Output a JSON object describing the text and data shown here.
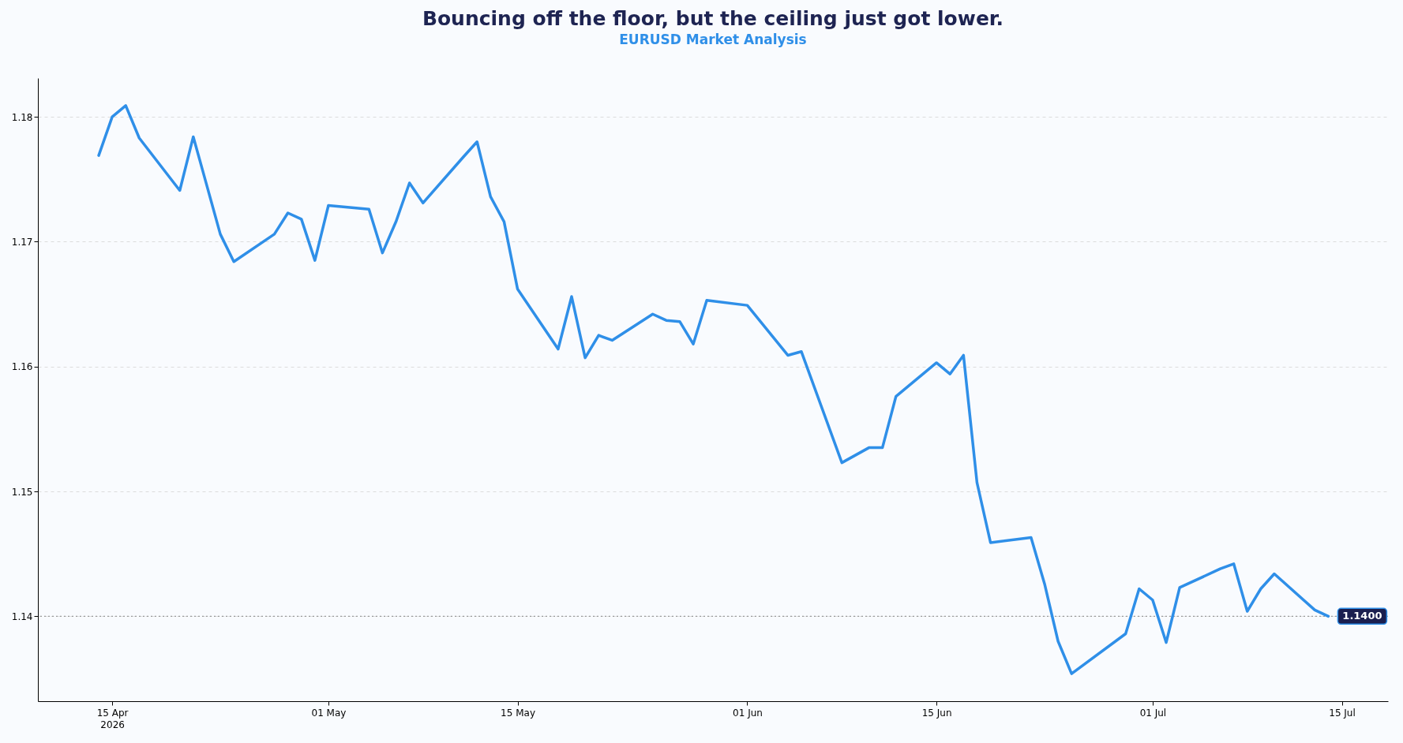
{
  "chart_data": {
    "type": "line",
    "title": "Bouncing off the floor, but the ceiling just got lower.",
    "subtitle": "EURUSD Market Analysis",
    "x": [
      "2026-04-14",
      "2026-04-15",
      "2026-04-16",
      "2026-04-17",
      "2026-04-20",
      "2026-04-21",
      "2026-04-22",
      "2026-04-23",
      "2026-04-24",
      "2026-04-27",
      "2026-04-28",
      "2026-04-29",
      "2026-04-30",
      "2026-05-01",
      "2026-05-04",
      "2026-05-05",
      "2026-05-06",
      "2026-05-07",
      "2026-05-08",
      "2026-05-11",
      "2026-05-12",
      "2026-05-13",
      "2026-05-14",
      "2026-05-15",
      "2026-05-18",
      "2026-05-19",
      "2026-05-20",
      "2026-05-21",
      "2026-05-22",
      "2026-05-25",
      "2026-05-26",
      "2026-05-27",
      "2026-05-28",
      "2026-05-29",
      "2026-06-01",
      "2026-06-04",
      "2026-06-05",
      "2026-06-08",
      "2026-06-09",
      "2026-06-10",
      "2026-06-11",
      "2026-06-12",
      "2026-06-15",
      "2026-06-16",
      "2026-06-17",
      "2026-06-18",
      "2026-06-19",
      "2026-06-22",
      "2026-06-23",
      "2026-06-24",
      "2026-06-25",
      "2026-06-29",
      "2026-06-30",
      "2026-07-01",
      "2026-07-02",
      "2026-07-03",
      "2026-07-06",
      "2026-07-07",
      "2026-07-08",
      "2026-07-09",
      "2026-07-10",
      "2026-07-13",
      "2026-07-14"
    ],
    "series": [
      {
        "color": "#2f8fe8",
        "values": [
          1.1769,
          1.18,
          1.1809,
          1.1783,
          1.1741,
          1.1784,
          1.1745,
          1.1706,
          1.1684,
          1.1706,
          1.1723,
          1.1718,
          1.1685,
          1.1729,
          1.1726,
          1.1691,
          1.1716,
          1.1747,
          1.1731,
          1.1768,
          1.178,
          1.1736,
          1.1716,
          1.1662,
          1.1614,
          1.1656,
          1.1607,
          1.1625,
          1.1621,
          1.1642,
          1.1637,
          1.1636,
          1.1618,
          1.1653,
          1.1649,
          1.1609,
          1.1612,
          1.1523,
          1.1529,
          1.1535,
          1.1535,
          1.1576,
          1.1603,
          1.1594,
          1.1609,
          1.1507,
          1.1459,
          1.1463,
          1.1426,
          1.138,
          1.1354,
          1.1386,
          1.1422,
          1.1413,
          1.1379,
          1.1423,
          1.1438,
          1.1442,
          1.1404,
          1.1422,
          1.1434,
          1.1405,
          1.14
        ]
      }
    ],
    "xlim": [
      "2026-04-09T12:00",
      "2026-07-18T10:00"
    ],
    "xticks": [
      {
        "value": "2026-04-15",
        "label": "15 Apr\n2026"
      },
      {
        "value": "2026-05-01",
        "label": "01 May"
      },
      {
        "value": "2026-05-15",
        "label": "15 May"
      },
      {
        "value": "2026-06-01",
        "label": "01 Jun"
      },
      {
        "value": "2026-06-15",
        "label": "15 Jun"
      },
      {
        "value": "2026-07-01",
        "label": "01 Jul"
      },
      {
        "value": "2026-07-15",
        "label": "15 Jul"
      }
    ],
    "ylim": [
      1.1332,
      1.1831
    ],
    "yticks": [
      1.14,
      1.15,
      1.16,
      1.17,
      1.18
    ],
    "grid": "y",
    "ref_lines": [
      {
        "axis": "y",
        "value": 1.14,
        "color": "#9a9a9a",
        "line_style": "dotted"
      }
    ],
    "annotations": [
      {
        "text": "1.1400",
        "x": "2026-07-14",
        "y": 1.14
      }
    ],
    "line_style": "solid"
  }
}
